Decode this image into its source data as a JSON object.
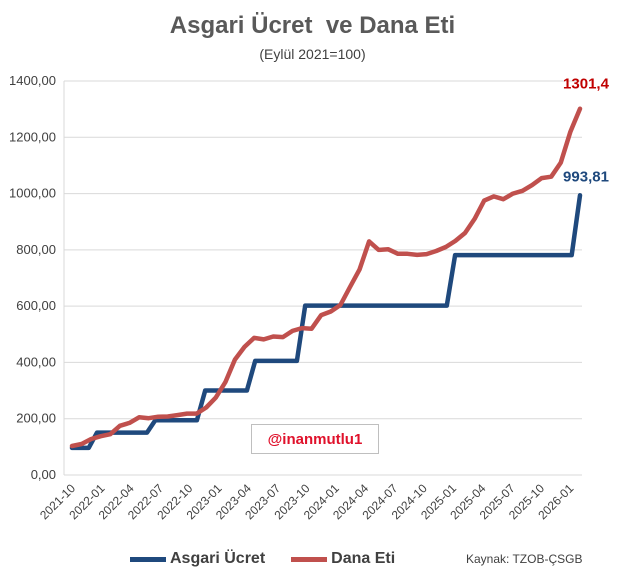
{
  "chart_data": {
    "type": "line",
    "title": "Asgari Ücret  ve Dana Eti",
    "subtitle": "(Eylül 2021=100)",
    "xlabel": "",
    "ylabel": "",
    "ylim": [
      0,
      1400
    ],
    "y_ticks": [
      "0,00",
      "200,00",
      "400,00",
      "600,00",
      "800,00",
      "1000,00",
      "1200,00",
      "1400,00"
    ],
    "x_ticks": [
      "2021-10",
      "2022-01",
      "2022-04",
      "2022-07",
      "2022-10",
      "2023-01",
      "2023-04",
      "2023-07",
      "2023-10",
      "2024-01",
      "2024-04",
      "2024-07",
      "2024-10",
      "2025-01",
      "2025-04",
      "2025-07",
      "2025-10",
      "2026-01"
    ],
    "grid": true,
    "legend_position": "bottom",
    "series": [
      {
        "name": "Asgari Ücret",
        "color": "#1f497d",
        "values": [
          96.2,
          96.2,
          96.2,
          150.5,
          150.5,
          150.5,
          150.5,
          150.5,
          150.5,
          150.5,
          194.5,
          194.5,
          194.5,
          194.5,
          194.5,
          194.5,
          300.3,
          300.3,
          300.3,
          300.3,
          300.3,
          300.3,
          405.3,
          405.3,
          405.3,
          405.3,
          405.3,
          405.3,
          601.9,
          601.9,
          601.9,
          601.9,
          601.9,
          601.9,
          601.9,
          601.9,
          601.9,
          601.9,
          601.9,
          601.9,
          601.9,
          601.9,
          601.9,
          601.9,
          601.9,
          601.9,
          781.4,
          781.4,
          781.4,
          781.4,
          781.4,
          781.4,
          781.4,
          781.4,
          781.4,
          781.4,
          781.4,
          781.4,
          781.4,
          781.4,
          781.4,
          993.81
        ]
      },
      {
        "name": "Dana Eti",
        "color": "#c0504d",
        "values": [
          103,
          110,
          128,
          138,
          145,
          175,
          185,
          205,
          202,
          207,
          208,
          213,
          218,
          218,
          240,
          275,
          330,
          410,
          455,
          487,
          482,
          492,
          490,
          512,
          522,
          520,
          568,
          581,
          604,
          668,
          730,
          830,
          800,
          802,
          786,
          786,
          782,
          785,
          796,
          810,
          832,
          860,
          910,
          975,
          990,
          980,
          1000,
          1010,
          1030,
          1055,
          1060,
          1110,
          1220,
          1301.4
        ]
      }
    ],
    "annotations": [
      {
        "series": "Dana Eti",
        "text": "1301,4",
        "color": "#c00000"
      },
      {
        "series": "Asgari Ücret",
        "text": "993,81",
        "color": "#1f497d"
      }
    ]
  },
  "watermark": "@inanmutlu1",
  "source": "Kaynak: TZOB-ÇSGB"
}
